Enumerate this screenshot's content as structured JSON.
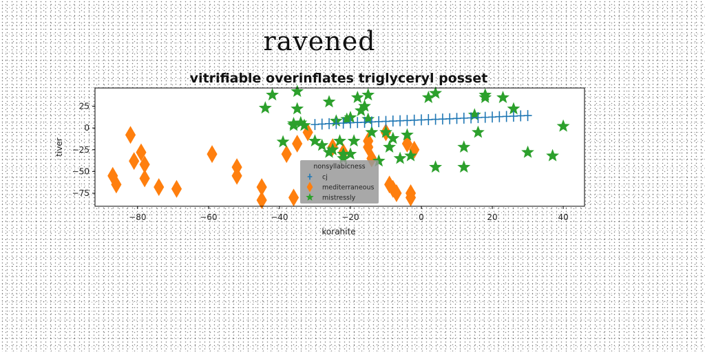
{
  "page_title": "ravened",
  "chart_data": {
    "type": "scatter",
    "title": "vitrifiable overinflates triglyceryl posset",
    "xlabel": "korahite",
    "ylabel": "tiver",
    "xlim": [
      -92,
      46
    ],
    "ylim": [
      -90,
      46
    ],
    "xticks": [
      -80,
      -60,
      -40,
      -20,
      0,
      20,
      40
    ],
    "yticks": [
      25,
      0,
      -25,
      -50,
      -75
    ],
    "legend": {
      "title": "nonsyllabicness",
      "location": "lower-center",
      "entries": [
        "cj",
        "mediterraneous",
        "mistressly"
      ]
    },
    "series": [
      {
        "name": "cj",
        "marker": "plus",
        "color": "#1f77b4",
        "x": [
          -30,
          -28,
          -26,
          -24,
          -22,
          -20,
          -18,
          -16,
          -14,
          -12,
          -10,
          -8,
          -6,
          -4,
          -2,
          0,
          2,
          4,
          6,
          8,
          10,
          12,
          14,
          16,
          18,
          20,
          22,
          24,
          26,
          28,
          30
        ],
        "y": [
          4,
          4.5,
          5,
          5.3,
          5.6,
          6,
          6.3,
          6.6,
          7,
          7.3,
          7.6,
          8,
          8.3,
          8.6,
          9,
          9.3,
          9.6,
          10,
          10.3,
          10.6,
          11,
          11.3,
          11.6,
          12,
          12.3,
          12.6,
          13,
          13.3,
          13.6,
          14,
          14.3
        ]
      },
      {
        "name": "mediterraneous",
        "marker": "thin_diamond",
        "color": "#ff7f0e",
        "x": [
          -82,
          -87,
          -86,
          -81,
          -79,
          -78,
          -78,
          -74,
          -69,
          -59,
          -52,
          -52,
          -45,
          -45,
          -38,
          -36,
          -35,
          -32,
          -25,
          -22,
          -15,
          -15,
          -14,
          -10,
          -9,
          -8,
          -7,
          -4,
          -3,
          -3,
          -2
        ],
        "y": [
          -8,
          -55,
          -65,
          -38,
          -28,
          -42,
          -58,
          -68,
          -70,
          -30,
          -45,
          -55,
          -68,
          -83,
          -30,
          -80,
          -18,
          -5,
          -22,
          -28,
          -15,
          -22,
          -35,
          -5,
          -65,
          -70,
          -75,
          -18,
          -75,
          -80,
          -25
        ]
      },
      {
        "name": "mistressly",
        "marker": "star",
        "color": "#2ca02c",
        "x": [
          -42,
          -44,
          -35,
          -35,
          -36,
          -34,
          -33,
          -30,
          -28,
          -26,
          -25,
          -24,
          -23,
          -22,
          -21,
          -20,
          -19,
          -18,
          -17,
          -16,
          -15,
          -15,
          -14,
          -12,
          -10,
          -9,
          -8,
          -6,
          -4,
          -3,
          2,
          4,
          4,
          12,
          12,
          15,
          16,
          18,
          18,
          23,
          26,
          30,
          37,
          40,
          -39,
          -36,
          -26,
          -22,
          -20
        ],
        "y": [
          38,
          23,
          42,
          22,
          5,
          6,
          3,
          -15,
          -20,
          30,
          -25,
          8,
          -15,
          -30,
          10,
          12,
          -15,
          35,
          20,
          25,
          38,
          10,
          -5,
          -38,
          -5,
          -22,
          -12,
          -35,
          -8,
          -32,
          35,
          40,
          -45,
          -45,
          -22,
          15,
          -5,
          38,
          35,
          35,
          22,
          -28,
          -32,
          2,
          -16,
          3,
          -28,
          -35,
          -30
        ]
      }
    ]
  }
}
